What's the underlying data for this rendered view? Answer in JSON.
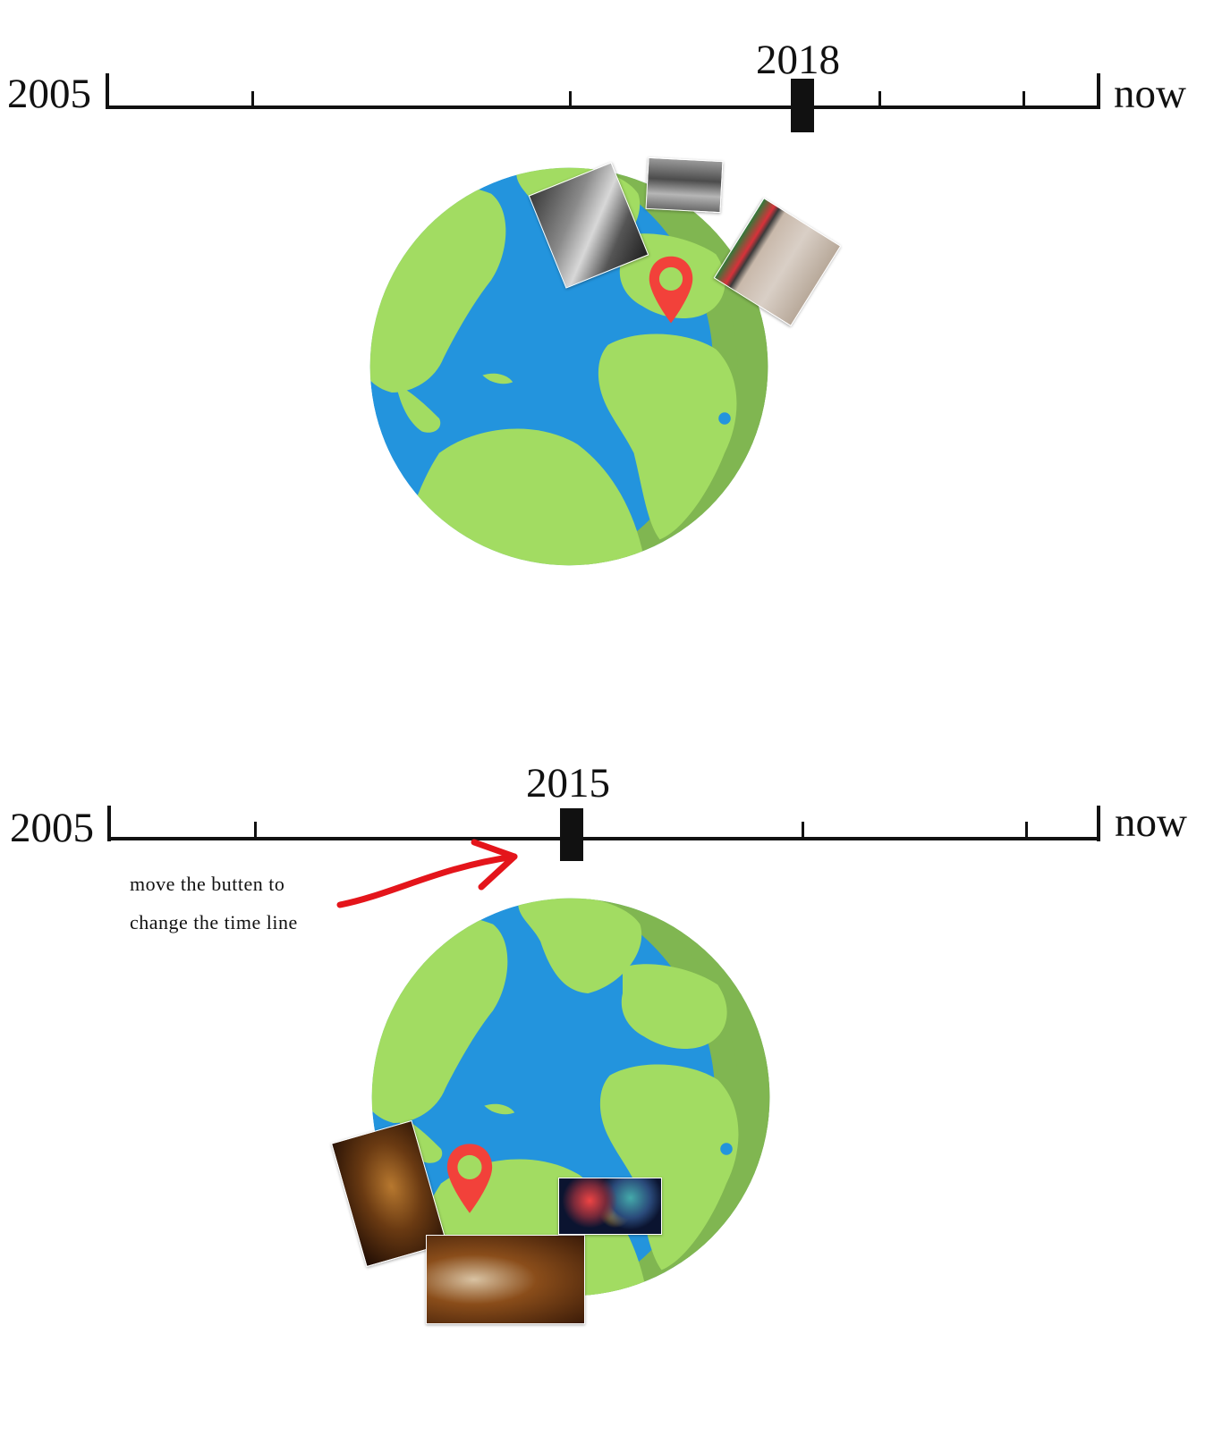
{
  "panels": [
    {
      "start_label": "2005",
      "end_label": "now",
      "selected_year": "2018",
      "selected_fraction": 0.7,
      "photos": [
        "bw-sketch-photo",
        "bw-street-photo",
        "graffiti-wall-photo"
      ]
    },
    {
      "start_label": "2005",
      "end_label": "now",
      "selected_year": "2015",
      "selected_fraction": 0.46,
      "photos": [
        "cat-portrait-photo",
        "cat-closeup-photo",
        "night-lights-photo"
      ]
    }
  ],
  "hint": {
    "line1": "move the butten to",
    "line2": "change the time line"
  },
  "colors": {
    "ocean": "#2394dd",
    "land": "#a2dc62",
    "land_shadow": "#80b651",
    "marker": "#f2413a",
    "timeline": "#111111",
    "arrow": "#e4151b"
  }
}
